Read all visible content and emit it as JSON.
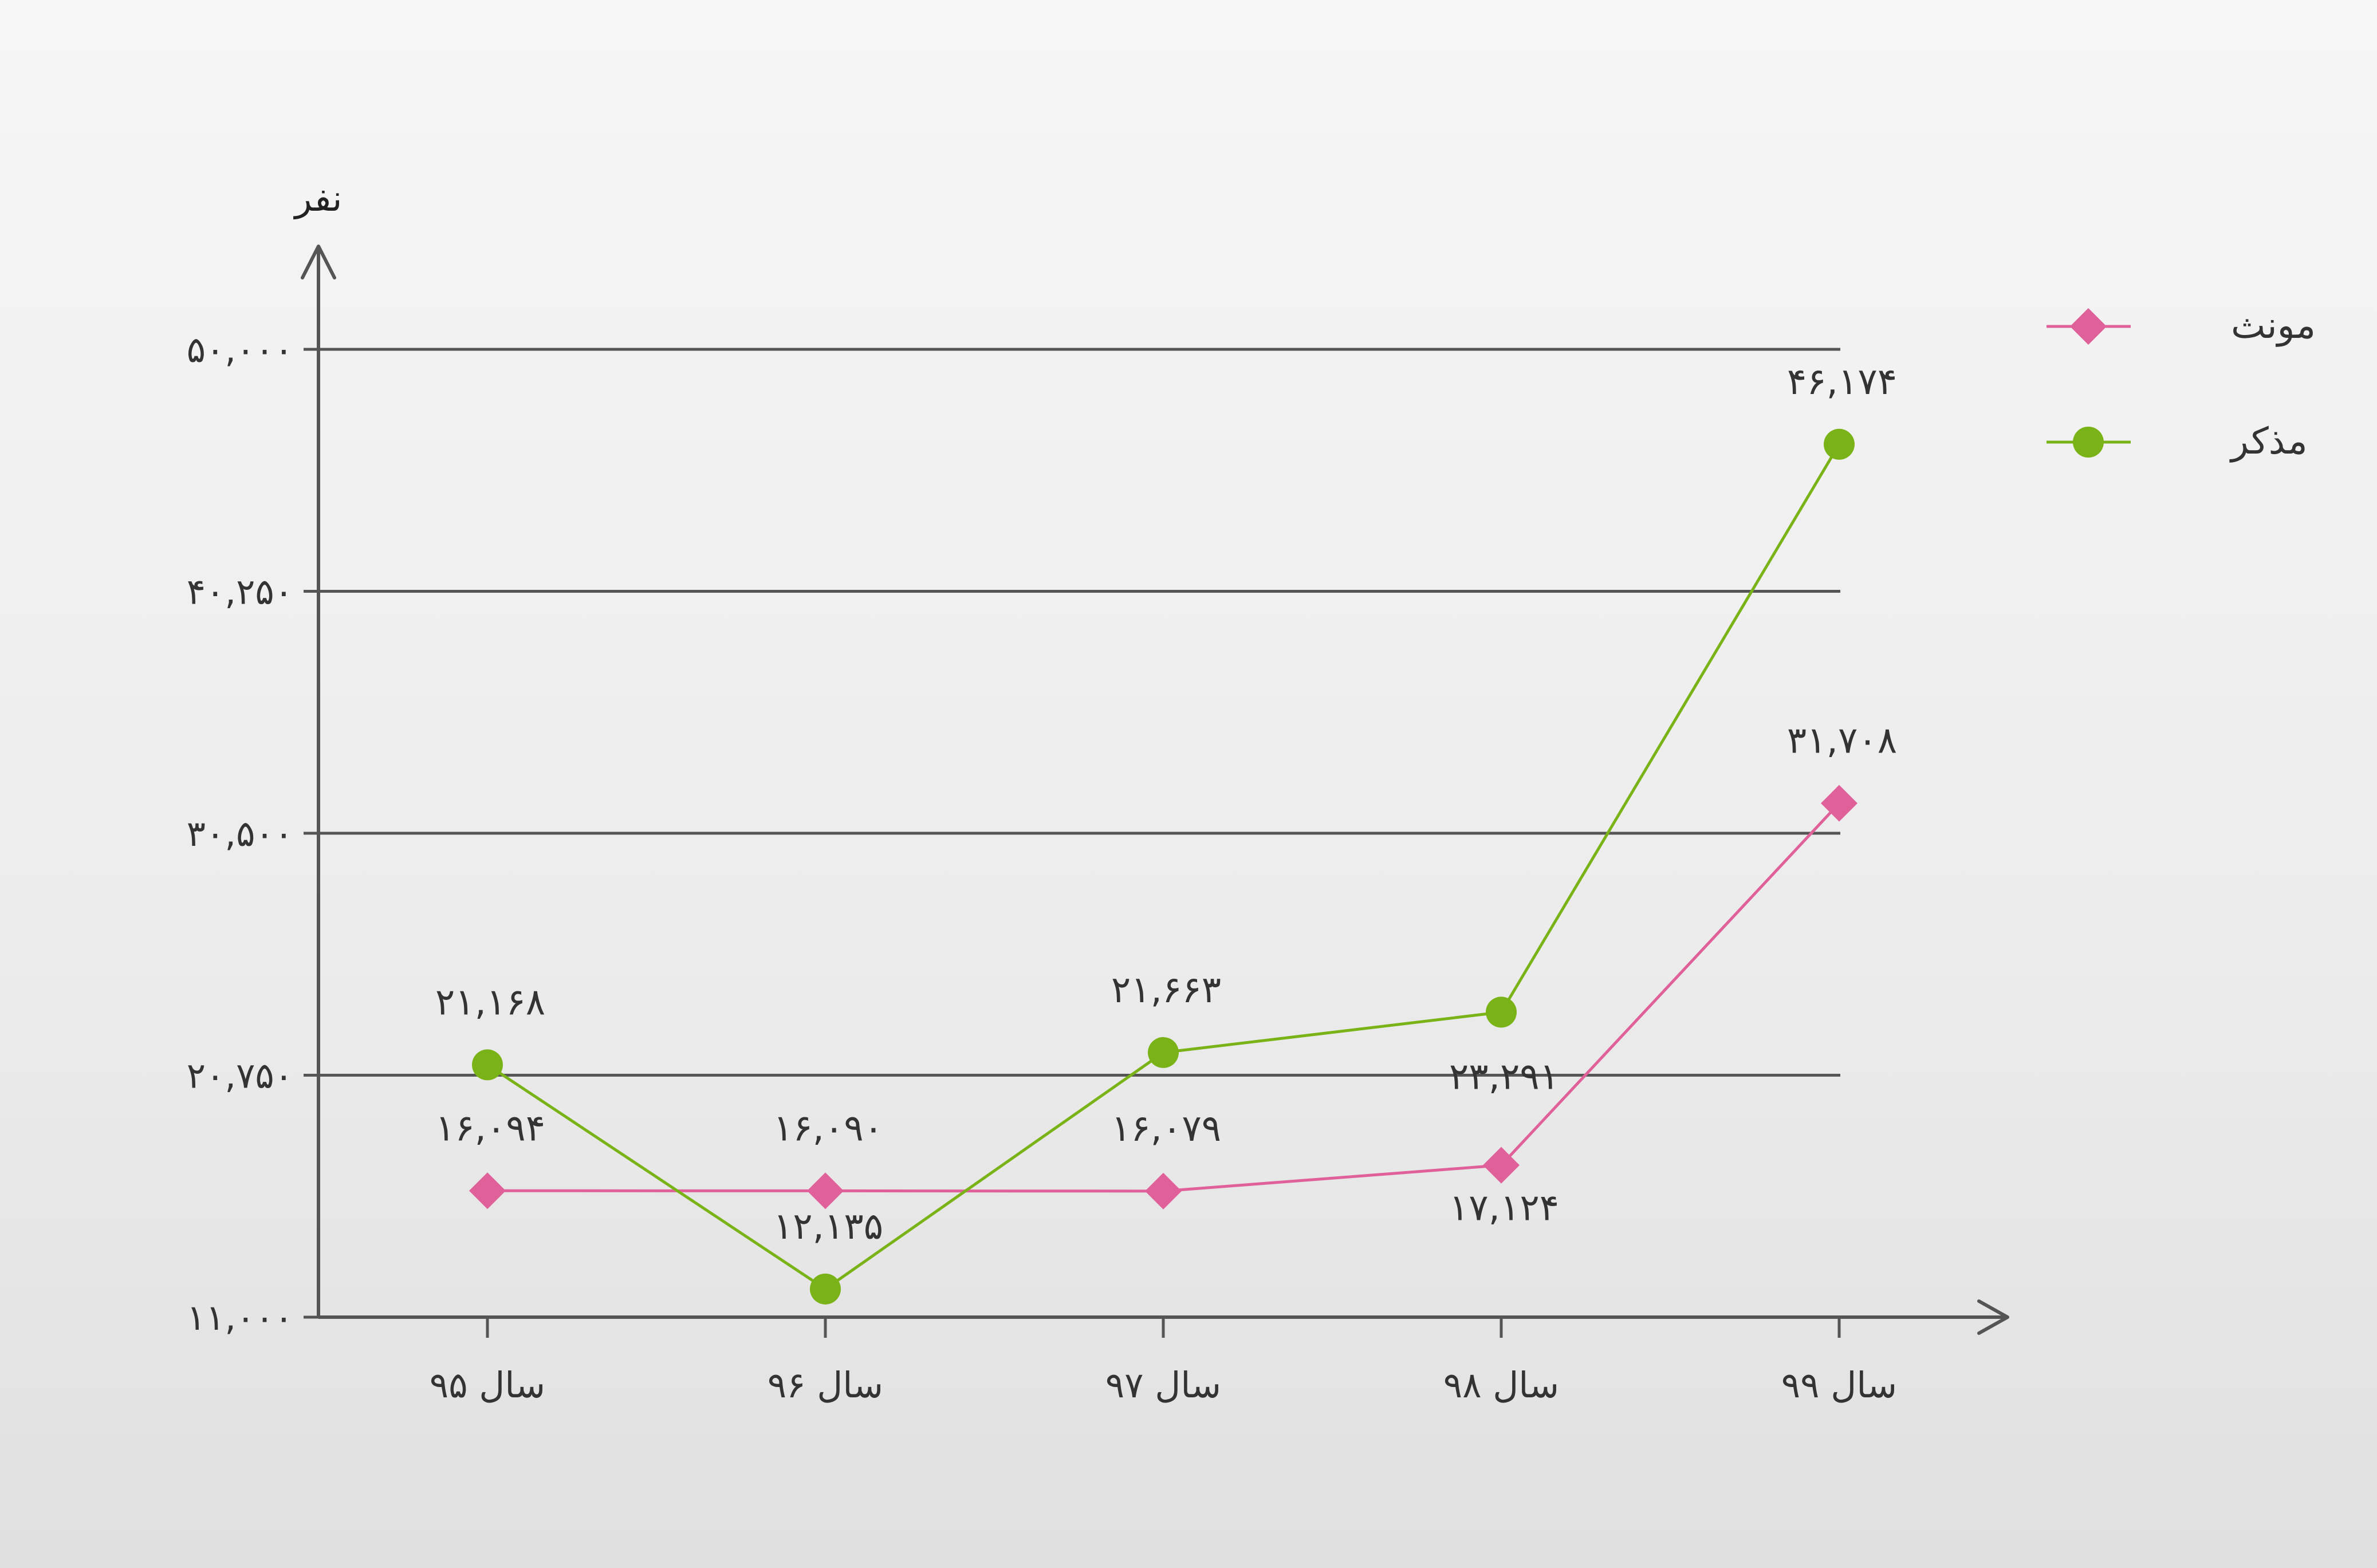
{
  "chart_data": {
    "type": "line",
    "ylabel": "نفر",
    "ylim": [
      11000,
      50000
    ],
    "yticks": [
      11000,
      20750,
      30500,
      40250,
      50000
    ],
    "ytick_labels": [
      "۱۱,۰۰۰",
      "۲۰,۷۵۰",
      "۳۰,۵۰۰",
      "۴۰,۲۵۰",
      "۵۰,۰۰۰"
    ],
    "categories": [
      "سال ۹۵",
      "سال ۹۶",
      "سال ۹۷",
      "سال ۹۸",
      "سال ۹۹"
    ],
    "grid": true,
    "legend_position": "top-right",
    "series": [
      {
        "name": "مونث",
        "color": "#e0609a",
        "marker": "diamond",
        "values": [
          16094,
          16090,
          16079,
          17124,
          31708
        ],
        "labels": [
          "۱۶,۰۹۴",
          "۱۶,۰۹۰",
          "۱۶,۰۷۹",
          "۱۷,۱۲۴",
          "۳۱,۷۰۸"
        ]
      },
      {
        "name": "مذکر",
        "color": "#7ab317",
        "marker": "circle",
        "values": [
          21168,
          12135,
          21663,
          23291,
          46174
        ],
        "labels": [
          "۲۱,۱۶۸",
          "۱۲,۱۳۵",
          "۲۱,۶۶۳",
          "۲۳,۲۹۱",
          "۴۶,۱۷۴"
        ]
      }
    ]
  }
}
